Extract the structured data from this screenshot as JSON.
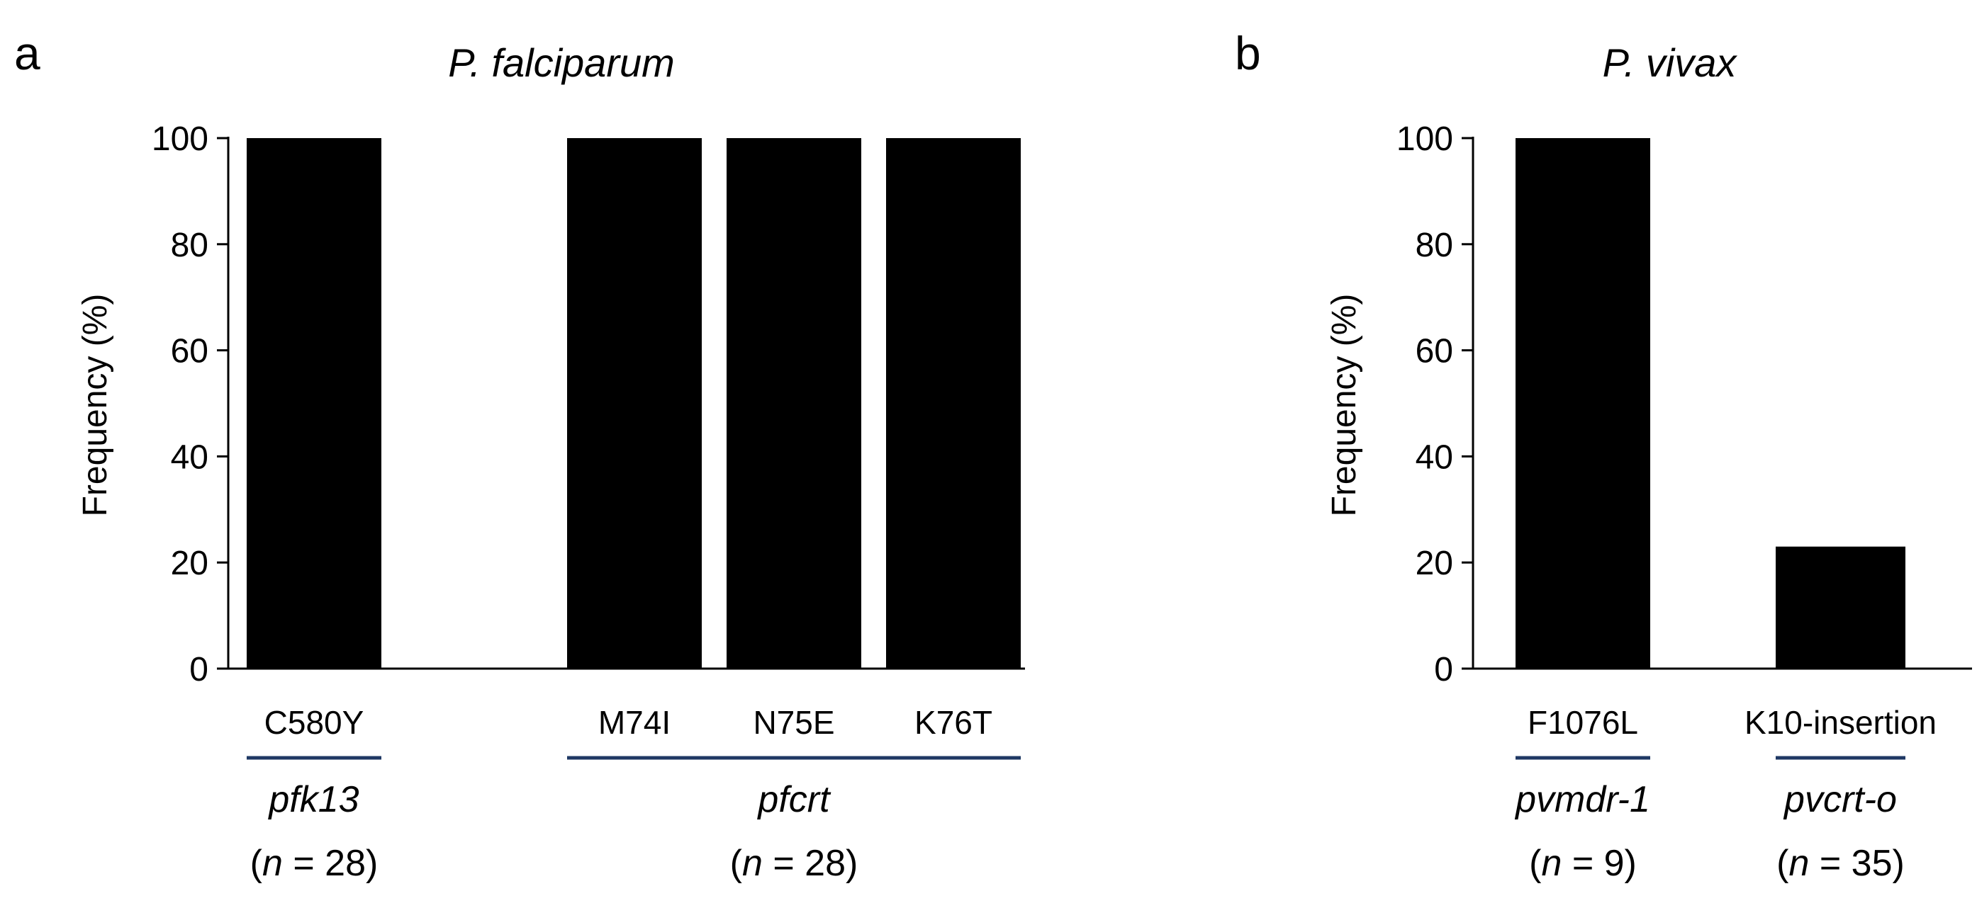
{
  "colors": {
    "bar": "#000000",
    "axis": "#000000",
    "underline": "#1f3864",
    "background": "#ffffff"
  },
  "chart_data": [
    {
      "panel": "a",
      "type": "bar",
      "title": "P. falciparum",
      "ylabel": "Frequency (%)",
      "xlabel": "",
      "ylim": [
        0,
        100
      ],
      "yticks": [
        "0",
        "20",
        "40",
        "60",
        "80",
        "100"
      ],
      "grid": false,
      "categories": [
        "C580Y",
        "",
        "M74I",
        "N75E",
        "K76T"
      ],
      "values": [
        100,
        null,
        100,
        100,
        100
      ],
      "groups": [
        {
          "gene": "pfk13",
          "n_prefix": "(",
          "n_var": "n",
          "n_suffix": " = 28)",
          "category_indices": [
            0
          ]
        },
        {
          "gene": "pfcrt",
          "n_prefix": "(",
          "n_var": "n",
          "n_suffix": " = 28)",
          "category_indices": [
            2,
            3,
            4
          ]
        }
      ]
    },
    {
      "panel": "b",
      "type": "bar",
      "title": "P. vivax",
      "ylabel": "Frequency (%)",
      "xlabel": "",
      "ylim": [
        0,
        100
      ],
      "yticks": [
        "0",
        "20",
        "40",
        "60",
        "80",
        "100"
      ],
      "grid": false,
      "categories": [
        "F1076L",
        "K10-insertion"
      ],
      "values": [
        100,
        23
      ],
      "groups": [
        {
          "gene": "pvmdr-1",
          "n_prefix": "(",
          "n_var": "n",
          "n_suffix": " = 9)",
          "category_indices": [
            0
          ]
        },
        {
          "gene": "pvcrt-o",
          "n_prefix": "(",
          "n_var": "n",
          "n_suffix": " = 35)",
          "category_indices": [
            1
          ]
        }
      ]
    }
  ]
}
